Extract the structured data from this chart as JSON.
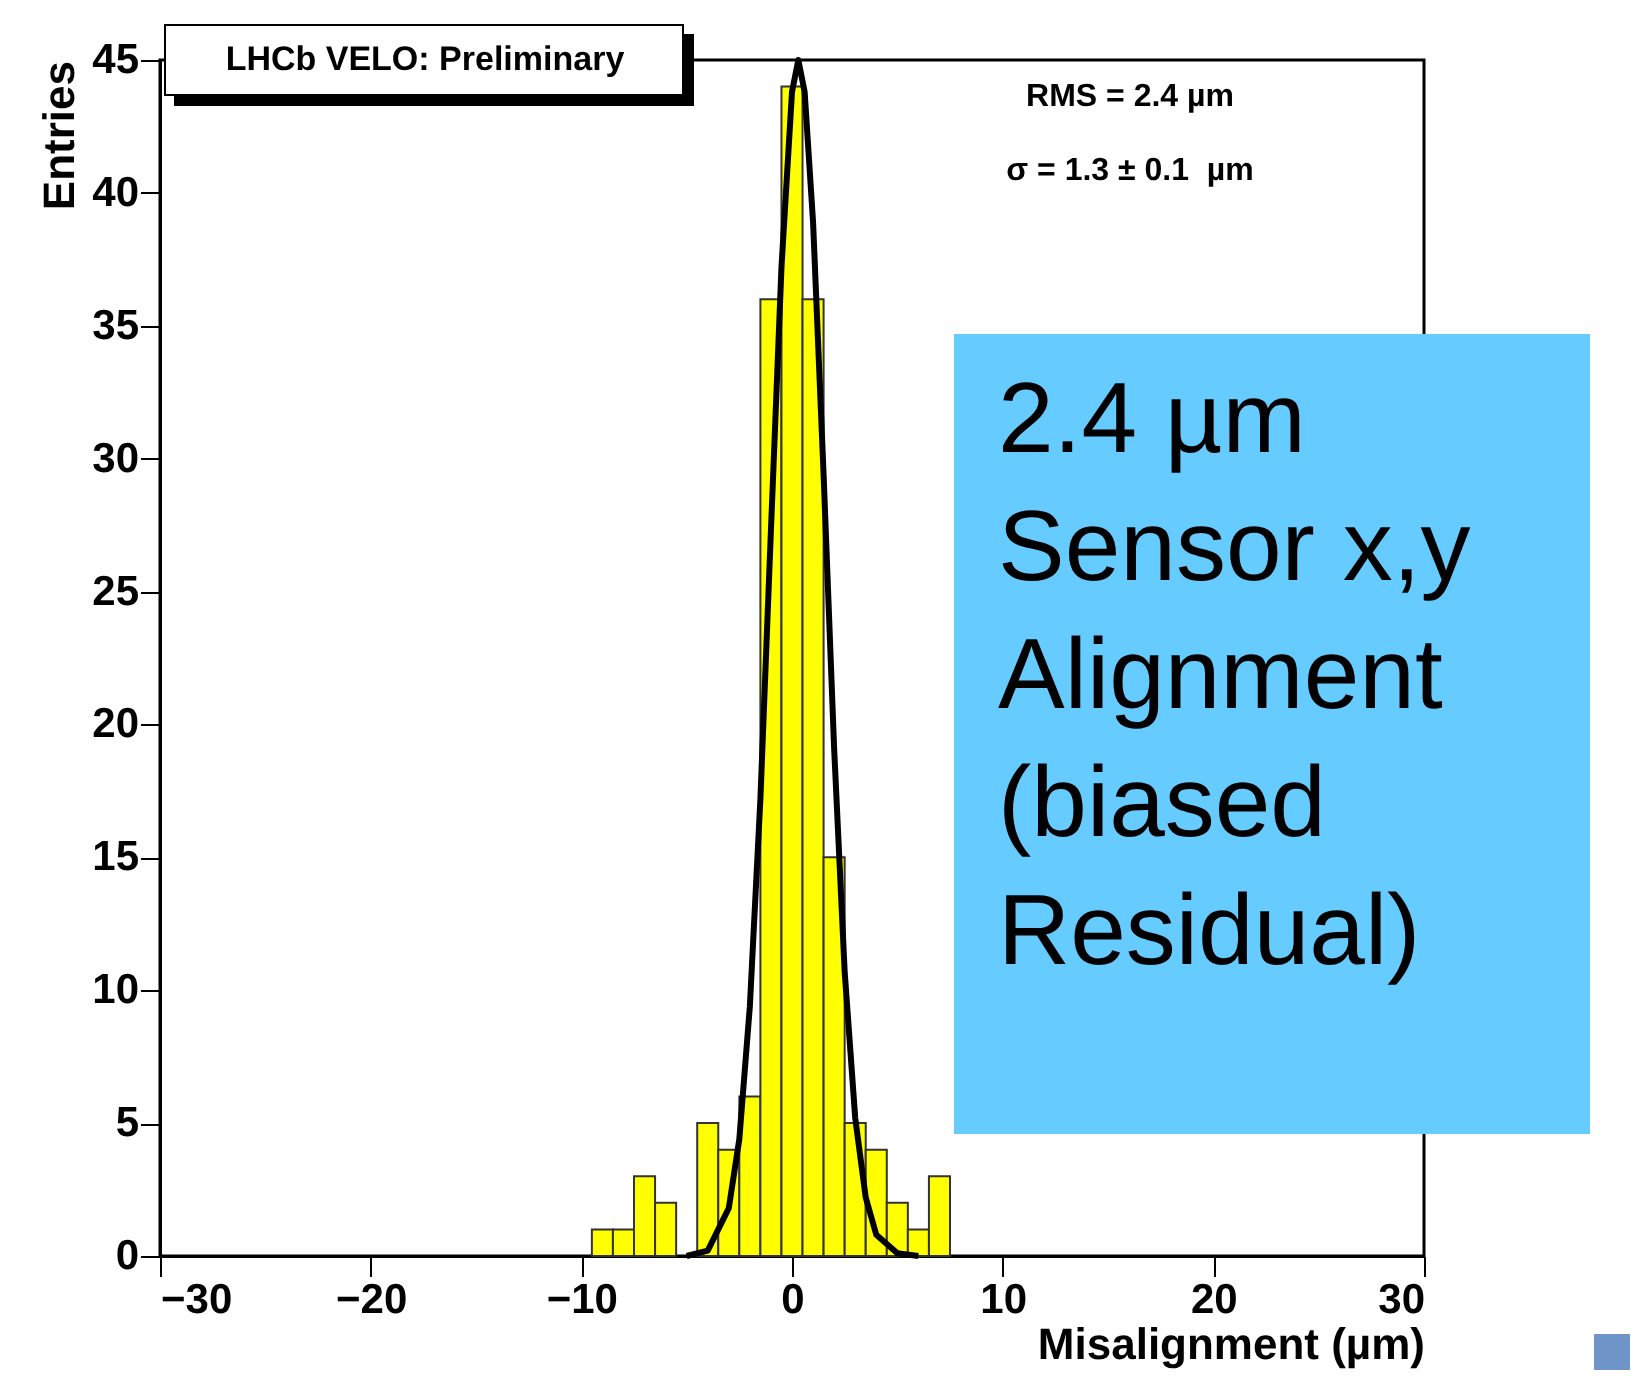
{
  "chart_data": {
    "type": "histogram",
    "xlabel": "Misalignment (µm)",
    "ylabel": "Entries",
    "bins": [
      -9.5,
      -8.5,
      -7.5,
      -6.5,
      -5.5,
      -4.5,
      -3.5,
      -2.5,
      -1.5,
      -0.5,
      0.5,
      1.5,
      2.5,
      3.5,
      4.5,
      5.5,
      6.5,
      7.5
    ],
    "series": [
      {
        "color": "#ffff00",
        "values": [
          1,
          1,
          3,
          2,
          0,
          5,
          4,
          6,
          36,
          44,
          36,
          15,
          5,
          4,
          2,
          1,
          3
        ]
      },
      {
        "type": "line",
        "color": "#000000",
        "x": [
          -5,
          -4,
          -3,
          -2.5,
          -2,
          -1.5,
          -1,
          -0.5,
          0,
          0.3,
          0.6,
          1,
          1.5,
          2,
          2.5,
          3,
          3.5,
          4,
          5,
          6
        ],
        "values": [
          0,
          0.2,
          1.8,
          4.4,
          9.4,
          17.2,
          27.3,
          37.2,
          43.8,
          45,
          43.8,
          38.9,
          29.4,
          19.1,
          10.7,
          5.2,
          2.2,
          0.8,
          0.1,
          0
        ]
      }
    ],
    "xlim": [
      -30,
      30
    ],
    "xticks": [
      -30,
      -20,
      -10,
      0,
      10,
      20,
      30
    ],
    "ylim": [
      0,
      45
    ],
    "yticks": [
      0,
      5,
      10,
      15,
      20,
      25,
      30,
      35,
      40,
      45
    ],
    "grid": false,
    "annotations": [
      "LHCb VELO: Preliminary",
      "RMS = 2.4 µm",
      "σ = 1.3 ± 0.1  µm",
      "2.4 µm\nSensor x,y\nAlignment\n(biased\nResidual)"
    ]
  }
}
